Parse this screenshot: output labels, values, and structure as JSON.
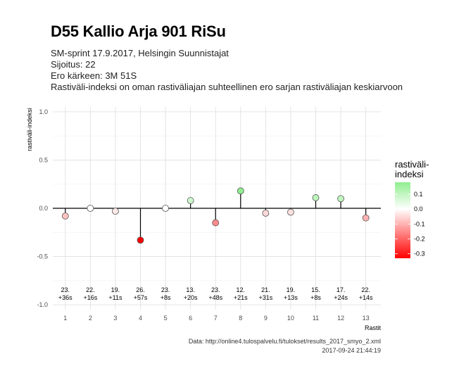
{
  "title": "D55 Kallio Arja 901 RiSu",
  "subtitle_lines": [
    "SM-sprint 17.9.2017, Helsingin Suunnistajat",
    "Sijoitus: 22",
    "Ero kärkeen: 3M 51S",
    "Rastiväli-indeksi on oman rastiväliajan suhteellinen ero sarjan rastiväliajan keskiarvoon"
  ],
  "caption_lines": [
    "Data: http://online4.tulospalvelu.fi/tulokset/results_2017_smyo_2.xml",
    "2017-09-24 21:44:19"
  ],
  "chart_data": {
    "type": "scatter",
    "xlabel": "Rastit",
    "ylabel": "rastiväli-indeksi",
    "x": [
      1,
      2,
      3,
      4,
      5,
      6,
      7,
      8,
      9,
      10,
      11,
      12,
      13
    ],
    "y": [
      -0.08,
      0.0,
      -0.03,
      -0.33,
      0.0,
      0.08,
      -0.15,
      0.18,
      -0.05,
      -0.04,
      0.11,
      0.1,
      -0.1
    ],
    "xticks": [
      "1",
      "2",
      "3",
      "4",
      "5",
      "6",
      "7",
      "8",
      "9",
      "10",
      "11",
      "12",
      "13"
    ],
    "yticks": [
      "-1.0",
      "-0.5",
      "0.0",
      "0.5",
      "1.0"
    ],
    "ylim": [
      -1.05,
      1.05
    ],
    "xlim": [
      0.5,
      13.6
    ],
    "grid": true,
    "point_labels": [
      [
        "23.",
        "+36s"
      ],
      [
        "22.",
        "+16s"
      ],
      [
        "19.",
        "+11s"
      ],
      [
        "26.",
        "+57s"
      ],
      [
        "23.",
        "+8s"
      ],
      [
        "13.",
        "+20s"
      ],
      [
        "23.",
        "+48s"
      ],
      [
        "12.",
        "+21s"
      ],
      [
        "21.",
        "+31s"
      ],
      [
        "19.",
        "+13s"
      ],
      [
        "15.",
        "+8s"
      ],
      [
        "17.",
        "+24s"
      ],
      [
        "22.",
        "+14s"
      ]
    ],
    "legend": {
      "title_lines": [
        "rastiväli-",
        "indeksi"
      ],
      "placement": "right",
      "ticks": [
        "0.1",
        "0.0",
        "-0.1",
        "-0.2",
        "-0.3"
      ],
      "range": [
        -0.33,
        0.18
      ],
      "colors": {
        "low": "#ff0000",
        "mid": "#ffffff",
        "high": "#90ee90"
      }
    }
  }
}
